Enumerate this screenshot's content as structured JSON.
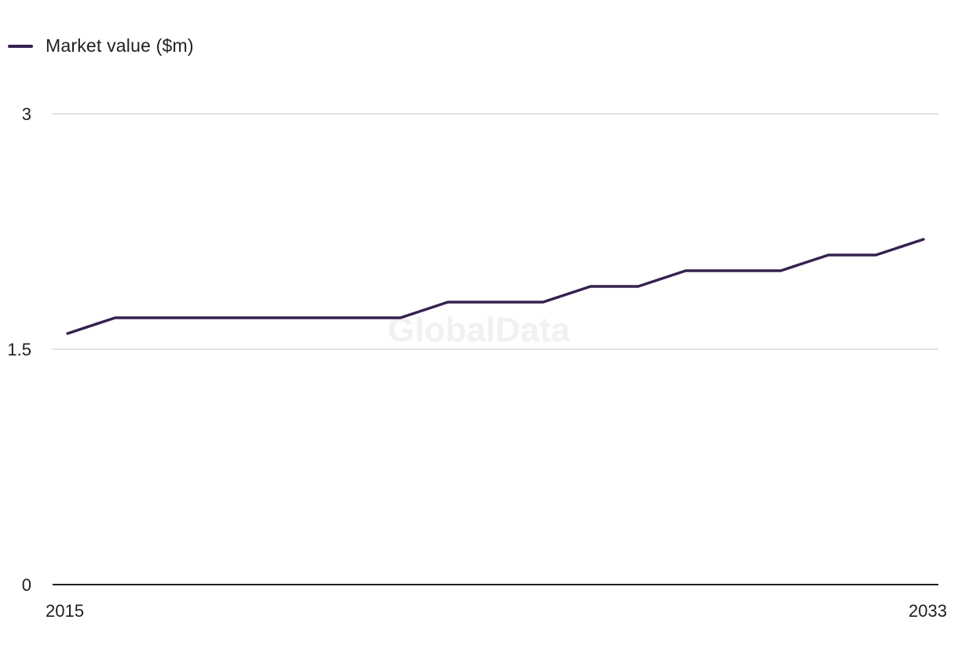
{
  "chart_data": {
    "type": "line",
    "title": "",
    "xlabel": "",
    "ylabel": "",
    "x": [
      2015,
      2016,
      2017,
      2018,
      2019,
      2020,
      2021,
      2022,
      2023,
      2024,
      2025,
      2026,
      2027,
      2028,
      2029,
      2030,
      2031,
      2032,
      2033
    ],
    "x_tick_labels": [
      "2015",
      "2033"
    ],
    "y_ticks": [
      0,
      1.5,
      3
    ],
    "y_tick_labels": [
      "0",
      "1.5",
      "3"
    ],
    "ylim": [
      0,
      3
    ],
    "grid": true,
    "legend_position": "top-left",
    "series": [
      {
        "name": "Market value ($m)",
        "color": "#35224f",
        "values": [
          1.6,
          1.7,
          1.7,
          1.7,
          1.7,
          1.7,
          1.7,
          1.7,
          1.8,
          1.8,
          1.8,
          1.9,
          1.9,
          2.0,
          2.0,
          2.0,
          2.1,
          2.1,
          2.2
        ]
      }
    ]
  },
  "watermark": "GlobalData",
  "colors": {
    "gridline": "#d9d9dc",
    "baseline": "#1f1f1f",
    "text": "#1f1f1f"
  }
}
